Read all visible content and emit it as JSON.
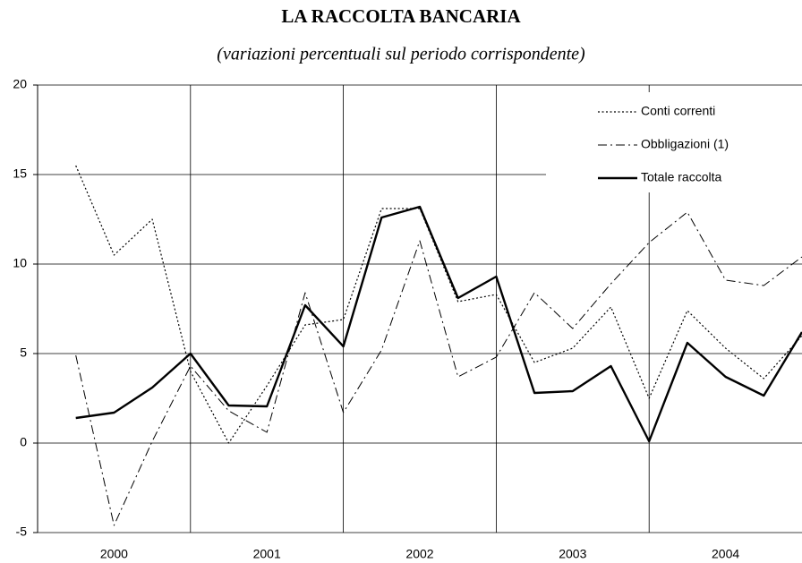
{
  "chart_data": {
    "type": "line",
    "title": "LA RACCOLTA BANCARIA",
    "subtitle": "(variazioni percentuali sul periodo corrispondente)",
    "x": [
      2000.25,
      2000.5,
      2000.75,
      2001.0,
      2001.25,
      2001.5,
      2001.75,
      2002.0,
      2002.25,
      2002.5,
      2002.75,
      2003.0,
      2003.25,
      2003.5,
      2003.75,
      2004.0,
      2004.25,
      2004.5,
      2004.75,
      2005.0
    ],
    "xlim": [
      2000,
      2005
    ],
    "xticks": [
      {
        "value": 2000.5,
        "label": "2000"
      },
      {
        "value": 2001.5,
        "label": "2001"
      },
      {
        "value": 2002.5,
        "label": "2002"
      },
      {
        "value": 2003.5,
        "label": "2003"
      },
      {
        "value": 2004.5,
        "label": "2004"
      }
    ],
    "ylim": [
      -5,
      20
    ],
    "yticks": [
      -5,
      0,
      5,
      10,
      15,
      20
    ],
    "grid": true,
    "legend": "upper right",
    "series": [
      {
        "name": "Conti correnti",
        "color": "#000000",
        "style": "dotted",
        "values": [
          15.5,
          10.5,
          12.5,
          4.0,
          0.0,
          3.2,
          6.6,
          6.9,
          13.1,
          13.1,
          7.9,
          8.3,
          4.5,
          5.3,
          7.6,
          2.5,
          7.4,
          5.3,
          3.6,
          6.0
        ]
      },
      {
        "name": "Obbligazioni (1)",
        "color": "#000000",
        "style": "dashdot",
        "values": [
          4.9,
          -4.6,
          0.1,
          4.3,
          1.8,
          0.6,
          8.4,
          1.7,
          5.2,
          11.3,
          3.7,
          4.8,
          8.4,
          6.4,
          8.9,
          11.2,
          12.9,
          9.1,
          8.8,
          10.4
        ]
      },
      {
        "name": "Totale raccolta",
        "color": "#000000",
        "style": "solid",
        "values": [
          1.4,
          1.7,
          3.1,
          5.0,
          2.1,
          2.05,
          7.7,
          5.4,
          12.6,
          13.2,
          8.1,
          9.3,
          2.8,
          2.9,
          4.3,
          0.1,
          5.6,
          3.7,
          2.65,
          6.2
        ]
      }
    ]
  }
}
